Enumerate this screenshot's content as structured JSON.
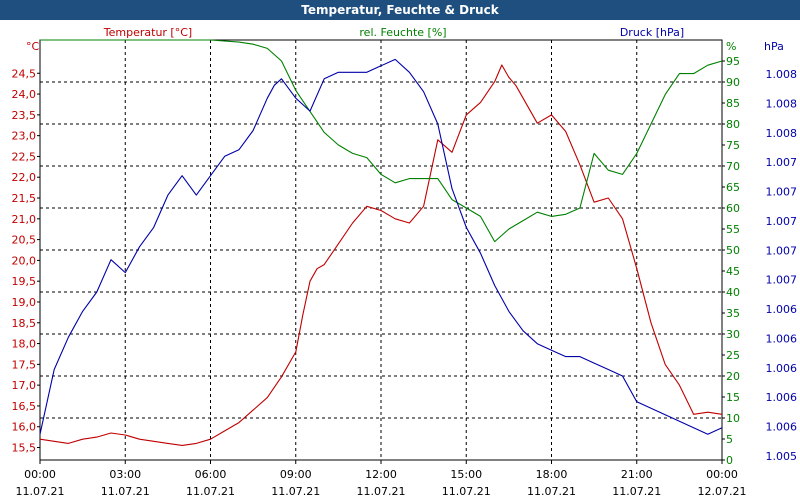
{
  "window": {
    "title": "Temperatur, Feuchte & Druck"
  },
  "colors": {
    "temperature": "#c00000",
    "humidity": "#008000",
    "pressure": "#0000aa",
    "axis_text": "#000000",
    "titlebar": "#1f4f7f"
  },
  "chart_data": {
    "type": "line",
    "title": "Temperatur, Feuchte & Druck",
    "x_ticks": [
      {
        "time": "00:00",
        "date": "11.07.21"
      },
      {
        "time": "03:00",
        "date": "11.07.21"
      },
      {
        "time": "06:00",
        "date": "11.07.21"
      },
      {
        "time": "09:00",
        "date": "11.07.21"
      },
      {
        "time": "12:00",
        "date": "11.07.21"
      },
      {
        "time": "15:00",
        "date": "11.07.21"
      },
      {
        "time": "18:00",
        "date": "11.07.21"
      },
      {
        "time": "21:00",
        "date": "11.07.21"
      },
      {
        "time": "00:00",
        "date": "12.07.21"
      }
    ],
    "x_range_hours": [
      0,
      24
    ],
    "y_left": {
      "label": "Temperatur [°C]",
      "unit": "°C",
      "range": [
        15.2,
        25.3
      ],
      "ticks": [
        "15,5",
        "16,0",
        "16,5",
        "17,0",
        "17,5",
        "18,0",
        "18,5",
        "19,0",
        "19,5",
        "20,0",
        "20,5",
        "21,0",
        "21,5",
        "22,0",
        "22,5",
        "23,0",
        "23,5",
        "24,0",
        "24,5"
      ]
    },
    "y_mid": {
      "label": "rel. Feuchte [%]",
      "unit": "%",
      "range": [
        0,
        100
      ],
      "ticks": [
        "0",
        "5",
        "10",
        "15",
        "20",
        "25",
        "30",
        "35",
        "40",
        "45",
        "50",
        "55",
        "60",
        "65",
        "70",
        "75",
        "80",
        "85",
        "90",
        "95"
      ]
    },
    "y_right": {
      "label": "Druck [hPa]",
      "unit": "hPa",
      "ticks": [
        "1.005",
        "1.006",
        "1.006",
        "1.006",
        "1.006",
        "1.006",
        "1.007",
        "1.007",
        "1.007",
        "1.007",
        "1.007",
        "1.008",
        "1.008",
        "1.008"
      ]
    },
    "series": [
      {
        "name": "Temperatur",
        "axis": "left",
        "color": "#c00000",
        "x": [
          0,
          0.5,
          1,
          1.5,
          2,
          2.5,
          3,
          3.5,
          4,
          4.5,
          5,
          5.5,
          6,
          6.5,
          7,
          7.5,
          8,
          8.5,
          9,
          9.25,
          9.5,
          9.75,
          10,
          10.5,
          11,
          11.5,
          12,
          12.5,
          13,
          13.5,
          14,
          14.5,
          15,
          15.5,
          16,
          16.25,
          16.5,
          16.75,
          17,
          17.5,
          18,
          18.5,
          19,
          19.5,
          20,
          20.5,
          21,
          21.5,
          22,
          22.5,
          23,
          23.5,
          24
        ],
        "values": [
          15.7,
          15.65,
          15.6,
          15.7,
          15.75,
          15.85,
          15.8,
          15.7,
          15.65,
          15.6,
          15.55,
          15.6,
          15.7,
          15.9,
          16.1,
          16.4,
          16.7,
          17.2,
          17.8,
          18.7,
          19.5,
          19.8,
          19.9,
          20.4,
          20.9,
          21.3,
          21.2,
          21.0,
          20.9,
          21.3,
          22.9,
          22.6,
          23.5,
          23.8,
          24.3,
          24.7,
          24.4,
          24.2,
          23.9,
          23.3,
          23.5,
          23.1,
          22.3,
          21.4,
          21.5,
          21.0,
          19.8,
          18.5,
          17.5,
          17.0,
          16.3,
          16.35,
          16.3
        ]
      },
      {
        "name": "rel. Feuchte",
        "axis": "mid",
        "color": "#008000",
        "x": [
          0,
          1,
          2,
          3,
          4,
          5,
          6,
          7,
          7.5,
          8,
          8.5,
          9,
          9.5,
          10,
          10.5,
          11,
          11.5,
          12,
          12.5,
          13,
          13.5,
          14,
          14.5,
          15,
          15.5,
          16,
          16.5,
          17,
          17.5,
          18,
          18.5,
          19,
          19.5,
          20,
          20.5,
          21,
          21.5,
          22,
          22.5,
          23,
          23.5,
          24
        ],
        "values": [
          100,
          100,
          100,
          100,
          100,
          100,
          100,
          99.5,
          99,
          98,
          95,
          88,
          83,
          78,
          75,
          73,
          72,
          68,
          66,
          67,
          67,
          67,
          62,
          60,
          58,
          52,
          55,
          57,
          59,
          58,
          58.5,
          60,
          73,
          69,
          68,
          73,
          80,
          87,
          92,
          92,
          94,
          95
        ]
      },
      {
        "name": "Druck",
        "axis": "right",
        "color": "#0000aa",
        "x": [
          0,
          0.5,
          1,
          1.5,
          2,
          2.5,
          3,
          3.5,
          4,
          4.5,
          5,
          5.5,
          6,
          6.5,
          7,
          7.5,
          8,
          8.25,
          8.5,
          9,
          9.25,
          9.5,
          10,
          10.5,
          11,
          11.5,
          12,
          12.5,
          13,
          13.5,
          14,
          14.5,
          15,
          15.5,
          16,
          16.5,
          17,
          17.5,
          18,
          18.5,
          19,
          19.5,
          20,
          20.5,
          21,
          21.5,
          22,
          22.5,
          23,
          23.5,
          24
        ],
        "values": [
          1005.6,
          1006.1,
          1006.35,
          1006.55,
          1006.7,
          1006.95,
          1006.85,
          1007.05,
          1007.2,
          1007.45,
          1007.6,
          1007.45,
          1007.6,
          1007.75,
          1007.8,
          1007.95,
          1008.2,
          1008.3,
          1008.35,
          1008.2,
          1008.15,
          1008.1,
          1008.35,
          1008.4,
          1008.4,
          1008.4,
          1008.45,
          1008.5,
          1008.4,
          1008.25,
          1008.0,
          1007.5,
          1007.2,
          1007.0,
          1006.75,
          1006.55,
          1006.4,
          1006.3,
          1006.25,
          1006.2,
          1006.2,
          1006.15,
          1006.1,
          1006.05,
          1005.85,
          1005.8,
          1005.75,
          1005.7,
          1005.65,
          1005.6,
          1005.65
        ]
      }
    ],
    "pressure_display_range": [
      1005.4,
      1008.65
    ],
    "grid": true
  }
}
